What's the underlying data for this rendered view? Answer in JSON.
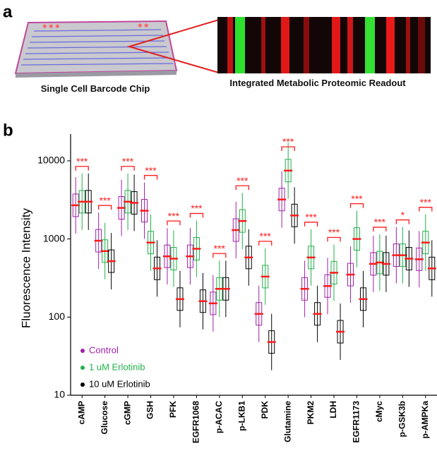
{
  "panel_a": {
    "label": "a",
    "chip_caption": "Single Cell Barcode Chip",
    "readout_caption": "Integrated Metabolic Proteomic Readout"
  },
  "chart_data": {
    "type": "strip",
    "panel_label": "b",
    "y_label": "Fluorescence Intensity",
    "log_scale": true,
    "categories": [
      "cAMP",
      "Glucose",
      "cGMP",
      "GSH",
      "PFK",
      "EGFR1068",
      "p-ACAC",
      "p-LKB1",
      "PDK",
      "Glutamine",
      "PKM2",
      "LDH",
      "EGFR1173",
      "cMyc",
      "p-GSK3b",
      "p-AMPKa"
    ],
    "series": [
      {
        "name": "Control",
        "color": "#a020a8",
        "values": [
          2700,
          950,
          2500,
          2300,
          600,
          600,
          150,
          1300,
          110,
          3200,
          230,
          250,
          350,
          480,
          620,
          550
        ]
      },
      {
        "name": "1 uM Erlotinib",
        "color": "#22b04a",
        "values": [
          3000,
          700,
          3000,
          900,
          560,
          750,
          230,
          1700,
          330,
          7500,
          580,
          370,
          1000,
          500,
          620,
          900
        ]
      },
      {
        "name": "10 uM Erlotinib",
        "color": "#000000",
        "values": [
          3000,
          520,
          2900,
          420,
          170,
          160,
          230,
          580,
          48,
          2000,
          110,
          65,
          170,
          480,
          560,
          420
        ]
      }
    ],
    "significance": [
      "***",
      "***",
      "***",
      "***",
      "***",
      "***",
      "***",
      "***",
      "***",
      "***",
      "***",
      "***",
      "***",
      "***",
      "*",
      "***"
    ],
    "median_color": "#ff1a1a",
    "ylim": [
      10,
      22000
    ],
    "yticks": [
      10,
      100,
      1000,
      10000
    ]
  }
}
